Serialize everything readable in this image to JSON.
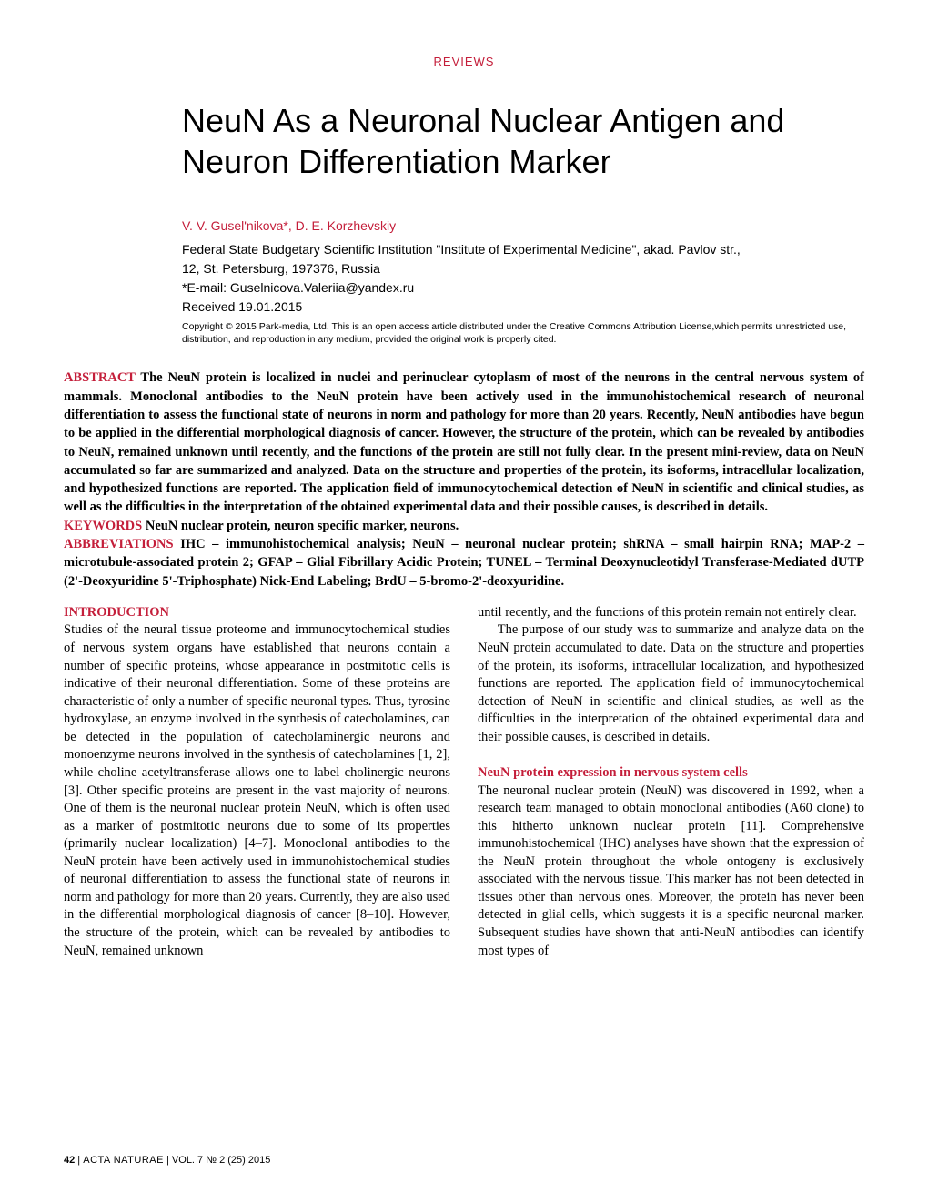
{
  "header": {
    "category": "REVIEWS"
  },
  "article": {
    "title": "NeuN As a Neuronal Nuclear Antigen and Neuron Differentiation Marker",
    "authors": "V. V. Gusel'nikova*, D. E. Korzhevskiy",
    "affiliation_line1": "Federal State Budgetary Scientific Institution \"Institute of Experimental Medicine\", akad. Pavlov str.,",
    "affiliation_line2": "12, St. Petersburg, 197376, Russia",
    "email": "*E-mail: Guselnicova.Valeriia@yandex.ru",
    "received": "Received 19.01.2015",
    "copyright": "Copyright © 2015 Park-media, Ltd. This is an open access article distributed under the Creative Commons Attribution License,which permits unrestricted use, distribution, and reproduction in any medium, provided the original work is properly cited."
  },
  "abstract": {
    "label": "ABSTRACT",
    "text": " The NeuN protein is localized in nuclei and perinuclear cytoplasm of most of the neurons in the central nervous system of mammals. Monoclonal antibodies to the NeuN protein have been actively used in the immunohistochemical research of neuronal differentiation to assess the functional state of neurons in norm and pathology for more than 20 years. Recently, NeuN antibodies have begun to be applied in the differential morphological diagnosis of cancer. However, the structure of the protein, which can be revealed by antibodies to NeuN, remained unknown until recently, and the functions of the protein are still not fully clear. In the present mini-review, data on NeuN accumulated so far are summarized and analyzed. Data on the structure and properties of the protein, its isoforms, intracellular localization, and hypothesized functions are reported. The application field of immunocytochemical detection of NeuN in scientific and clinical studies, as well as the difficulties in the interpretation of the obtained experimental data and their possible causes, is described in details."
  },
  "keywords": {
    "label": "KEYWORDS",
    "text": " NeuN nuclear protein, neuron specific marker, neurons."
  },
  "abbreviations": {
    "label": "ABBREVIATIONS",
    "text": " IHC – immunohistochemical analysis; NeuN – neuronal nuclear protein; shRNA – small hairpin RNA; MAP-2 – microtubule-associated protein 2; GFAP – Glial Fibrillary Acidic Protein; TUNEL – Terminal Deoxynucleotidyl Transferase-Mediated dUTP (2'-Deoxyuridine 5'-Triphosphate) Nick-End Labeling; BrdU – 5-bromo-2'-deoxyuridine."
  },
  "body": {
    "col1": {
      "heading1": "INTRODUCTION",
      "para1": "Studies of the neural tissue proteome and immunocytochemical studies of nervous system organs have established that neurons contain a number of specific proteins, whose appearance in postmitotic cells is indicative of their neuronal differentiation. Some of these proteins are characteristic of only a number of specific neuronal types. Thus, tyrosine hydroxylase, an enzyme involved in the synthesis of catecholamines, can be detected in the population of catecholaminergic neurons and monoenzyme neurons involved in the synthesis of catecholamines [1, 2], while choline acetyltransferase allows one to label cholinergic neurons [3]. Other specific proteins are present in the vast majority of neurons. One of them is the neuronal nuclear protein NeuN, which is often used as a marker of postmitotic neurons due to some of its properties (primarily nuclear localization) [4–7]. Monoclonal antibodies to the NeuN protein have been actively used in immunohistochemical studies of neuronal differentiation to assess the functional state of neurons in norm and pathology for more than 20 years. Currently, they are also used in the differential morphological diagnosis of cancer [8–10]. However, the structure of the protein, which can be revealed by antibodies to NeuN, remained unknown"
    },
    "col2": {
      "para1": "until recently, and the functions of this protein remain not entirely clear.",
      "para2": "The purpose of our study was to summarize and analyze data on the NeuN protein accumulated to date. Data on the structure and properties of the protein, its isoforms, intracellular localization, and hypothesized functions are reported. The application field of immunocytochemical detection of NeuN in scientific and clinical studies, as well as the difficulties in the interpretation of the obtained experimental data and their possible causes, is described in details.",
      "heading2": "NeuN protein expression in nervous system cells",
      "para3": "The neuronal nuclear protein (NeuN) was discovered in 1992, when a research team managed to obtain monoclonal antibodies (A60 clone) to this hitherto unknown nuclear protein [11]. Comprehensive immunohistochemical (IHC) analyses have shown that the expression of the NeuN protein throughout the whole ontogeny is exclusively associated with the nervous tissue. This marker has not been detected in tissues other than nervous ones. Moreover, the protein has never been detected in glial cells, which suggests it is a specific neuronal marker. Subsequent studies have shown that anti-NeuN antibodies can identify most types of"
    }
  },
  "footer": {
    "page_num": "42",
    "separator": " | ",
    "journal": "ACTA NATURAE",
    "volume": " |  VOL. 7  № 2 (25)  2015"
  },
  "colors": {
    "accent": "#c41e3a",
    "text": "#000000",
    "background": "#ffffff"
  },
  "typography": {
    "title_fontsize": 36,
    "body_fontsize": 14.5,
    "footer_fontsize": 11,
    "copyright_fontsize": 10.5
  }
}
